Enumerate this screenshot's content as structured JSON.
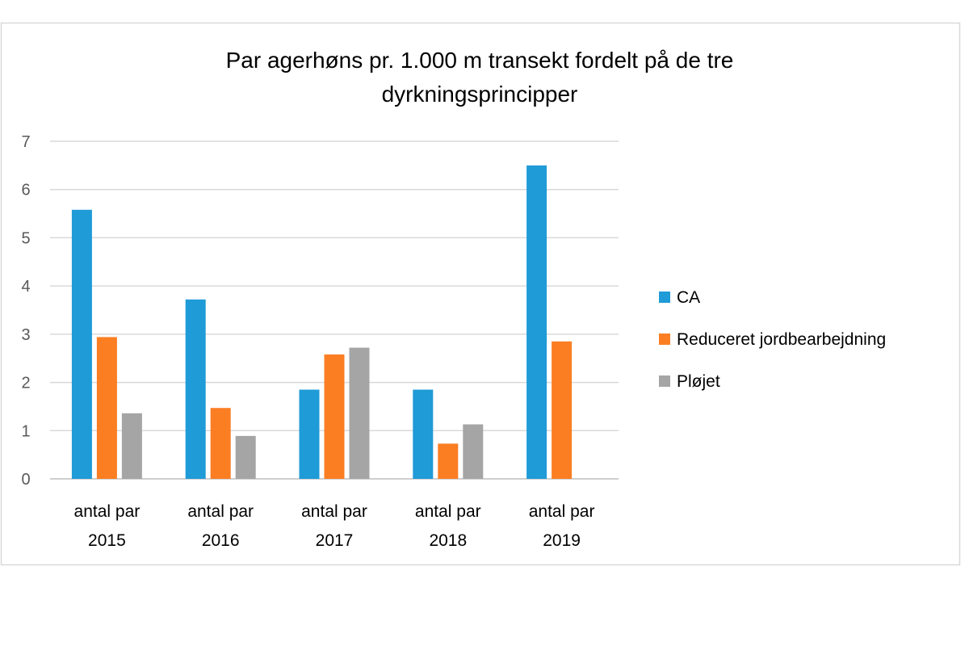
{
  "chart_data": {
    "type": "bar",
    "title_lines": [
      "Par agerhøns pr. 1.000 m transekt fordelt på de tre",
      "dyrkningsprincipper"
    ],
    "categories": [
      [
        "antal par",
        "2015"
      ],
      [
        "antal par",
        "2016"
      ],
      [
        "antal par",
        "2017"
      ],
      [
        "antal par",
        "2018"
      ],
      [
        "antal par",
        "2019"
      ]
    ],
    "series": [
      {
        "name": "CA",
        "color": "#1f9bd7",
        "values": [
          5.58,
          3.72,
          1.85,
          1.85,
          6.5
        ]
      },
      {
        "name": "Reduceret jordbearbejdning",
        "color": "#fb7e23",
        "values": [
          2.94,
          1.47,
          2.58,
          0.73,
          2.85
        ]
      },
      {
        "name": "Pløjet",
        "color": "#a5a5a5",
        "values": [
          1.36,
          0.89,
          2.72,
          1.13,
          null
        ]
      }
    ],
    "y_ticks": [
      "0",
      "1",
      "2",
      "3",
      "4",
      "5",
      "6",
      "7"
    ],
    "ylim": [
      0,
      7
    ],
    "grid": true,
    "legend_position": "right",
    "xlabel": "",
    "ylabel": ""
  }
}
